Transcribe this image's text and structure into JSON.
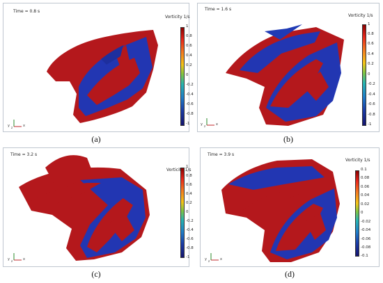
{
  "panels": [
    {
      "time": "Time = 0.8 s",
      "colorbar_title": "Vorticity 1/s",
      "ticks": [
        "1",
        "0.8",
        "0.6",
        "0.4",
        "0.2",
        "0",
        "-0.2",
        "-0.4",
        "-0.6",
        "-0.8",
        "-1"
      ],
      "caption": "(a)"
    },
    {
      "time": "Time = 1.6 s",
      "colorbar_title": "Vorticity 1/s",
      "ticks": [
        "1",
        "0.8",
        "0.6",
        "0.4",
        "0.2",
        "0",
        "-0.2",
        "-0.4",
        "-0.6",
        "-0.8",
        "-1"
      ],
      "caption": "(b)"
    },
    {
      "time": "Time = 3.2 s",
      "colorbar_title": "Vorticity 1/s",
      "ticks": [
        "1",
        "0.8",
        "0.6",
        "0.4",
        "0.2",
        "0",
        "-0.2",
        "-0.4",
        "-0.6",
        "-0.8",
        "-1"
      ],
      "caption": "(c)"
    },
    {
      "time": "Time = 3.9 s",
      "colorbar_title": "Vorticity 1/s",
      "ticks": [
        "0.1",
        "0.08",
        "0.06",
        "0.04",
        "0.02",
        "0",
        "-0.02",
        "-0.04",
        "-0.06",
        "-0.08",
        "-0.1"
      ],
      "caption": "(d)"
    }
  ],
  "axes_labels": {
    "y": "y",
    "z": "z",
    "x": "x"
  },
  "colors": {
    "positive": "#b0171b",
    "negative": "#1f3ab5",
    "border": "#bfc6cf"
  }
}
